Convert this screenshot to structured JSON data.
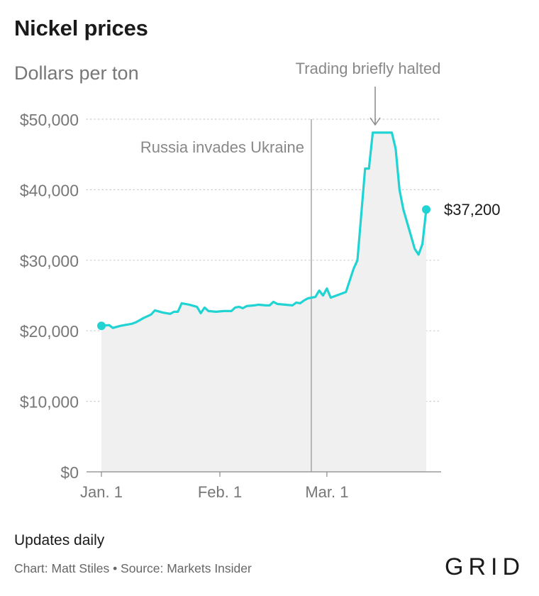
{
  "header": {
    "title": "Nickel prices",
    "subtitle": "Dollars per ton"
  },
  "footer": {
    "note": "Updates daily",
    "credits": "Chart: Matt Stiles • Source: Markets Insider",
    "logo": "GRID"
  },
  "colors": {
    "line": "#22d3d3",
    "area": "#f0f0f0",
    "grid": "#cccccc",
    "axis": "#888888",
    "annotation": "#888888"
  },
  "chart_data": {
    "type": "area",
    "title": "Nickel prices",
    "subtitle": "Dollars per ton",
    "xlabel": "",
    "ylabel": "",
    "x_ticks": [
      {
        "label": "Jan. 1",
        "date": "2022-01-01"
      },
      {
        "label": "Feb. 1",
        "date": "2022-02-01"
      },
      {
        "label": "Mar. 1",
        "date": "2022-03-01"
      }
    ],
    "y_ticks": [
      {
        "label": "$0",
        "value": 0
      },
      {
        "label": "$10,000",
        "value": 10000
      },
      {
        "label": "$20,000",
        "value": 20000
      },
      {
        "label": "$30,000",
        "value": 30000
      },
      {
        "label": "$40,000",
        "value": 40000
      },
      {
        "label": "$50,000",
        "value": 50000
      }
    ],
    "ylim": [
      0,
      50000
    ],
    "grid": true,
    "series": [
      {
        "points": [
          [
            "2022-01-01",
            20700
          ],
          [
            "2022-01-03",
            20800
          ],
          [
            "2022-01-04",
            20400
          ],
          [
            "2022-01-06",
            20700
          ],
          [
            "2022-01-09",
            21000
          ],
          [
            "2022-01-10",
            21200
          ],
          [
            "2022-01-12",
            21800
          ],
          [
            "2022-01-14",
            22300
          ],
          [
            "2022-01-15",
            22900
          ],
          [
            "2022-01-17",
            22600
          ],
          [
            "2022-01-19",
            22400
          ],
          [
            "2022-01-20",
            22700
          ],
          [
            "2022-01-21",
            22700
          ],
          [
            "2022-01-22",
            23900
          ],
          [
            "2022-01-24",
            23700
          ],
          [
            "2022-01-26",
            23400
          ],
          [
            "2022-01-27",
            22500
          ],
          [
            "2022-01-28",
            23300
          ],
          [
            "2022-01-29",
            22800
          ],
          [
            "2022-01-31",
            22700
          ],
          [
            "2022-02-02",
            22800
          ],
          [
            "2022-02-04",
            22800
          ],
          [
            "2022-02-05",
            23300
          ],
          [
            "2022-02-06",
            23400
          ],
          [
            "2022-02-07",
            23200
          ],
          [
            "2022-02-08",
            23500
          ],
          [
            "2022-02-10",
            23600
          ],
          [
            "2022-02-11",
            23700
          ],
          [
            "2022-02-13",
            23600
          ],
          [
            "2022-02-14",
            23600
          ],
          [
            "2022-02-15",
            24100
          ],
          [
            "2022-02-16",
            23800
          ],
          [
            "2022-02-18",
            23700
          ],
          [
            "2022-02-20",
            23600
          ],
          [
            "2022-02-21",
            24000
          ],
          [
            "2022-02-22",
            23900
          ],
          [
            "2022-02-23",
            24300
          ],
          [
            "2022-02-24",
            24600
          ],
          [
            "2022-02-26",
            24800
          ],
          [
            "2022-02-27",
            25700
          ],
          [
            "2022-02-28",
            25000
          ],
          [
            "2022-03-01",
            26000
          ],
          [
            "2022-03-02",
            24700
          ],
          [
            "2022-03-04",
            25100
          ],
          [
            "2022-03-06",
            25500
          ],
          [
            "2022-03-08",
            28800
          ],
          [
            "2022-03-09",
            30000
          ],
          [
            "2022-03-10",
            36500
          ],
          [
            "2022-03-11",
            43000
          ],
          [
            "2022-03-12",
            43000
          ],
          [
            "2022-03-13",
            48100
          ],
          [
            "2022-03-17",
            48100
          ],
          [
            "2022-03-18",
            48100
          ],
          [
            "2022-03-19",
            45800
          ],
          [
            "2022-03-20",
            40000
          ],
          [
            "2022-03-21",
            37200
          ],
          [
            "2022-03-23",
            33500
          ],
          [
            "2022-03-24",
            31600
          ],
          [
            "2022-03-25",
            30800
          ],
          [
            "2022-03-26",
            32300
          ],
          [
            "2022-03-27",
            37200
          ]
        ]
      }
    ],
    "annotations": [
      {
        "label": "Russia invades Ukraine",
        "date": "2022-02-24"
      },
      {
        "label": "Trading briefly halted",
        "date": "2022-03-15"
      }
    ],
    "end_label": "$37,200"
  }
}
